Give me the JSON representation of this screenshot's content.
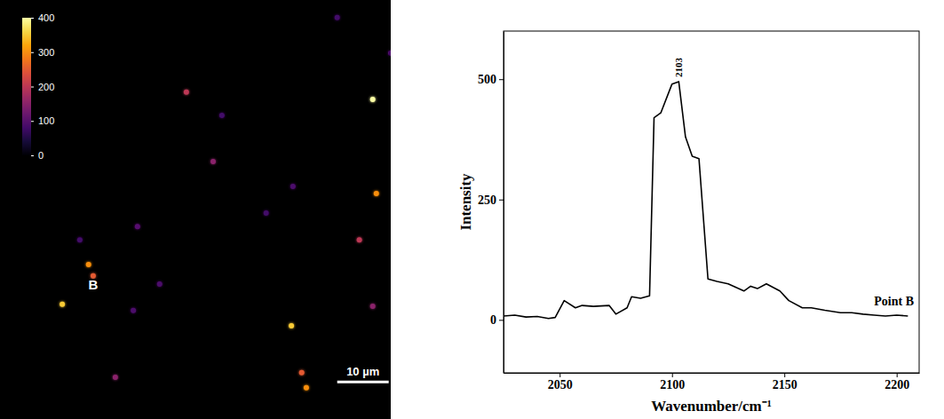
{
  "chart_data": [
    {
      "type": "heatmap",
      "xlim": [
        0,
        75.9
      ],
      "ylim": [
        0,
        81.4
      ],
      "tick_labels": false,
      "colorbar": {
        "range": [
          0,
          400
        ],
        "ticks": [
          0,
          100,
          200,
          300,
          400
        ]
      },
      "scale_bar": {
        "label": "10 µm",
        "length": 10,
        "x": 65.5,
        "y": 74.2
      },
      "point_label": {
        "text": "B",
        "x": 18.1,
        "y": 56.2
      },
      "spots": [
        {
          "x": 72.4,
          "y": 19.3,
          "value": 400
        },
        {
          "x": 73.1,
          "y": 37.6,
          "value": 300
        },
        {
          "x": 36.2,
          "y": 17.9,
          "value": 200
        },
        {
          "x": 41.4,
          "y": 31.4,
          "value": 150
        },
        {
          "x": 17.2,
          "y": 51.4,
          "value": 300
        },
        {
          "x": 18.1,
          "y": 53.6,
          "value": 250
        },
        {
          "x": 12.1,
          "y": 59.1,
          "value": 350
        },
        {
          "x": 56.6,
          "y": 63.3,
          "value": 350
        },
        {
          "x": 58.6,
          "y": 72.4,
          "value": 250
        },
        {
          "x": 59.5,
          "y": 75.3,
          "value": 300
        },
        {
          "x": 69.8,
          "y": 46.6,
          "value": 200
        },
        {
          "x": 72.4,
          "y": 59.5,
          "value": 150
        },
        {
          "x": 26.7,
          "y": 44.0,
          "value": 100
        },
        {
          "x": 22.4,
          "y": 73.3,
          "value": 150
        },
        {
          "x": 56.9,
          "y": 36.2,
          "value": 90
        },
        {
          "x": 15.5,
          "y": 46.6,
          "value": 80
        },
        {
          "x": 25.9,
          "y": 60.3,
          "value": 90
        },
        {
          "x": 75.9,
          "y": 10.3,
          "value": 90
        },
        {
          "x": 65.5,
          "y": 3.4,
          "value": 80
        },
        {
          "x": 43.1,
          "y": 22.4,
          "value": 80
        },
        {
          "x": 31.0,
          "y": 55.2,
          "value": 90
        },
        {
          "x": 51.7,
          "y": 41.4,
          "value": 80
        }
      ]
    },
    {
      "type": "line",
      "x_label": "Wavenumber/cm⁻¹",
      "y_label": "Intensity",
      "xlim": [
        2025,
        2210
      ],
      "ylim": [
        -110,
        600
      ],
      "xticks": [
        2050,
        2100,
        2150,
        2200
      ],
      "yticks": [
        0,
        250,
        500
      ],
      "annotations": [
        {
          "text": "2103",
          "x": 2103,
          "y": 495
        }
      ],
      "x": [
        2025,
        2030,
        2035,
        2040,
        2045,
        2048,
        2052,
        2057,
        2060,
        2065,
        2072,
        2075,
        2080,
        2082,
        2086,
        2090,
        2092,
        2095,
        2100,
        2103,
        2106,
        2109,
        2112,
        2116,
        2120,
        2125,
        2132,
        2135,
        2138,
        2142,
        2148,
        2152,
        2158,
        2162,
        2168,
        2175,
        2180,
        2185,
        2190,
        2195,
        2200,
        2205
      ],
      "series": [
        {
          "name": "Point B",
          "color": "#000000",
          "values": [
            8,
            10,
            6,
            7,
            3,
            5,
            40,
            25,
            30,
            28,
            30,
            12,
            25,
            48,
            45,
            50,
            420,
            430,
            490,
            495,
            380,
            340,
            335,
            85,
            80,
            75,
            60,
            70,
            65,
            75,
            60,
            40,
            25,
            25,
            20,
            15,
            15,
            12,
            10,
            8,
            10,
            8
          ]
        }
      ]
    }
  ]
}
